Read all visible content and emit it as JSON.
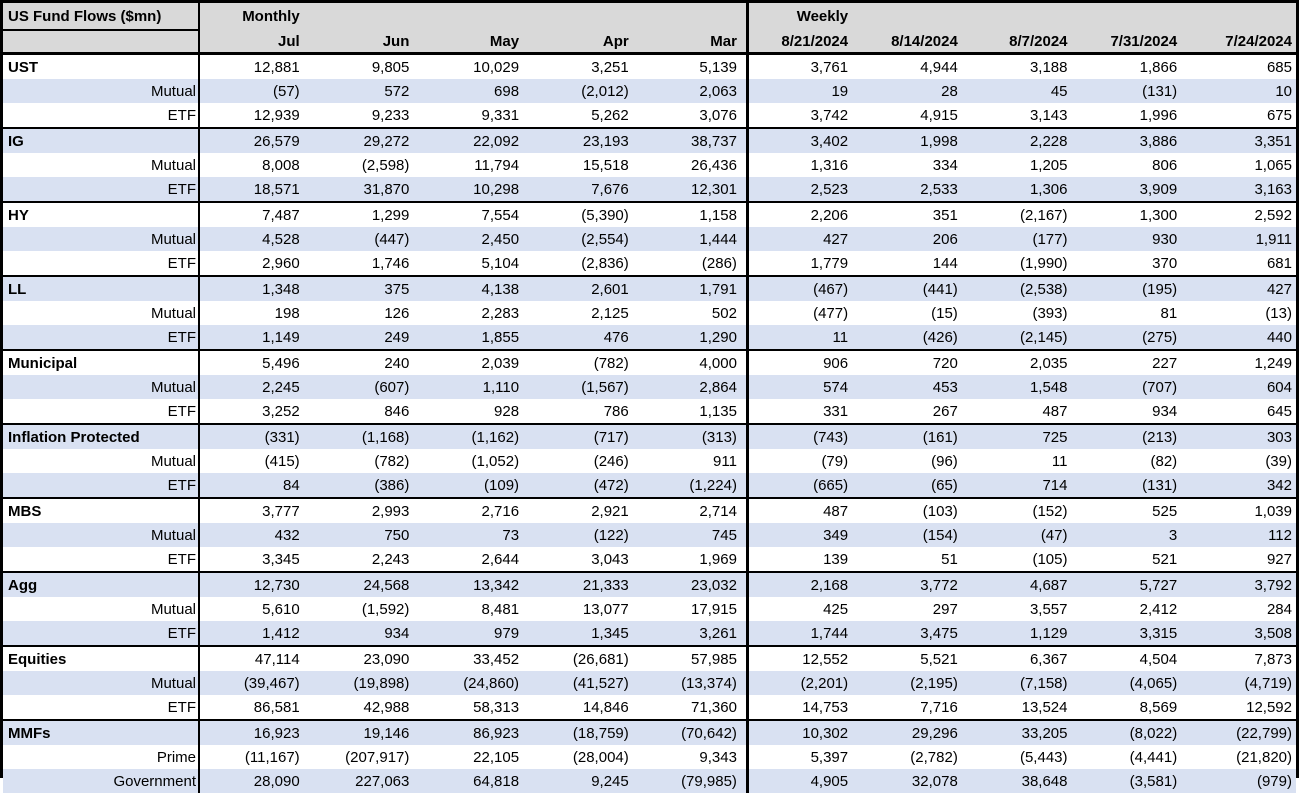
{
  "table": {
    "title": "US Fund Flows ($mn)",
    "monthly_label": "Monthly",
    "weekly_label": "Weekly",
    "monthly_columns": [
      "Jul",
      "Jun",
      "May",
      "Apr",
      "Mar"
    ],
    "weekly_columns": [
      "8/21/2024",
      "8/14/2024",
      "8/7/2024",
      "7/31/2024",
      "7/24/2024"
    ],
    "groups": [
      {
        "name": "UST",
        "rows": [
          {
            "label": "UST",
            "values": [
              "12,881",
              "9,805",
              "10,029",
              "3,251",
              "5,139",
              "3,761",
              "4,944",
              "3,188",
              "1,866",
              "685"
            ]
          },
          {
            "label": "Mutual",
            "values": [
              "(57)",
              "572",
              "698",
              "(2,012)",
              "2,063",
              "19",
              "28",
              "45",
              "(131)",
              "10"
            ]
          },
          {
            "label": "ETF",
            "values": [
              "12,939",
              "9,233",
              "9,331",
              "5,262",
              "3,076",
              "3,742",
              "4,915",
              "3,143",
              "1,996",
              "675"
            ]
          }
        ]
      },
      {
        "name": "IG",
        "rows": [
          {
            "label": "IG",
            "values": [
              "26,579",
              "29,272",
              "22,092",
              "23,193",
              "38,737",
              "3,402",
              "1,998",
              "2,228",
              "3,886",
              "3,351"
            ]
          },
          {
            "label": "Mutual",
            "values": [
              "8,008",
              "(2,598)",
              "11,794",
              "15,518",
              "26,436",
              "1,316",
              "334",
              "1,205",
              "806",
              "1,065"
            ]
          },
          {
            "label": "ETF",
            "values": [
              "18,571",
              "31,870",
              "10,298",
              "7,676",
              "12,301",
              "2,523",
              "2,533",
              "1,306",
              "3,909",
              "3,163"
            ]
          }
        ]
      },
      {
        "name": "HY",
        "rows": [
          {
            "label": "HY",
            "values": [
              "7,487",
              "1,299",
              "7,554",
              "(5,390)",
              "1,158",
              "2,206",
              "351",
              "(2,167)",
              "1,300",
              "2,592"
            ]
          },
          {
            "label": "Mutual",
            "values": [
              "4,528",
              "(447)",
              "2,450",
              "(2,554)",
              "1,444",
              "427",
              "206",
              "(177)",
              "930",
              "1,911"
            ]
          },
          {
            "label": "ETF",
            "values": [
              "2,960",
              "1,746",
              "5,104",
              "(2,836)",
              "(286)",
              "1,779",
              "144",
              "(1,990)",
              "370",
              "681"
            ]
          }
        ]
      },
      {
        "name": "LL",
        "rows": [
          {
            "label": "LL",
            "values": [
              "1,348",
              "375",
              "4,138",
              "2,601",
              "1,791",
              "(467)",
              "(441)",
              "(2,538)",
              "(195)",
              "427"
            ]
          },
          {
            "label": "Mutual",
            "values": [
              "198",
              "126",
              "2,283",
              "2,125",
              "502",
              "(477)",
              "(15)",
              "(393)",
              "81",
              "(13)"
            ]
          },
          {
            "label": "ETF",
            "values": [
              "1,149",
              "249",
              "1,855",
              "476",
              "1,290",
              "11",
              "(426)",
              "(2,145)",
              "(275)",
              "440"
            ]
          }
        ]
      },
      {
        "name": "Municipal",
        "rows": [
          {
            "label": "Municipal",
            "values": [
              "5,496",
              "240",
              "2,039",
              "(782)",
              "4,000",
              "906",
              "720",
              "2,035",
              "227",
              "1,249"
            ]
          },
          {
            "label": "Mutual",
            "values": [
              "2,245",
              "(607)",
              "1,110",
              "(1,567)",
              "2,864",
              "574",
              "453",
              "1,548",
              "(707)",
              "604"
            ]
          },
          {
            "label": "ETF",
            "values": [
              "3,252",
              "846",
              "928",
              "786",
              "1,135",
              "331",
              "267",
              "487",
              "934",
              "645"
            ]
          }
        ]
      },
      {
        "name": "Inflation Protected",
        "rows": [
          {
            "label": "Inflation Protected",
            "values": [
              "(331)",
              "(1,168)",
              "(1,162)",
              "(717)",
              "(313)",
              "(743)",
              "(161)",
              "725",
              "(213)",
              "303"
            ]
          },
          {
            "label": "Mutual",
            "values": [
              "(415)",
              "(782)",
              "(1,052)",
              "(246)",
              "911",
              "(79)",
              "(96)",
              "11",
              "(82)",
              "(39)"
            ]
          },
          {
            "label": "ETF",
            "values": [
              "84",
              "(386)",
              "(109)",
              "(472)",
              "(1,224)",
              "(665)",
              "(65)",
              "714",
              "(131)",
              "342"
            ]
          }
        ]
      },
      {
        "name": "MBS",
        "rows": [
          {
            "label": "MBS",
            "values": [
              "3,777",
              "2,993",
              "2,716",
              "2,921",
              "2,714",
              "487",
              "(103)",
              "(152)",
              "525",
              "1,039"
            ]
          },
          {
            "label": "Mutual",
            "values": [
              "432",
              "750",
              "73",
              "(122)",
              "745",
              "349",
              "(154)",
              "(47)",
              "3",
              "112"
            ]
          },
          {
            "label": "ETF",
            "values": [
              "3,345",
              "2,243",
              "2,644",
              "3,043",
              "1,969",
              "139",
              "51",
              "(105)",
              "521",
              "927"
            ]
          }
        ]
      },
      {
        "name": "Agg",
        "rows": [
          {
            "label": "Agg",
            "values": [
              "12,730",
              "24,568",
              "13,342",
              "21,333",
              "23,032",
              "2,168",
              "3,772",
              "4,687",
              "5,727",
              "3,792"
            ]
          },
          {
            "label": "Mutual",
            "values": [
              "5,610",
              "(1,592)",
              "8,481",
              "13,077",
              "17,915",
              "425",
              "297",
              "3,557",
              "2,412",
              "284"
            ]
          },
          {
            "label": "ETF",
            "values": [
              "1,412",
              "934",
              "979",
              "1,345",
              "3,261",
              "1,744",
              "3,475",
              "1,129",
              "3,315",
              "3,508"
            ]
          }
        ]
      },
      {
        "name": "Equities",
        "rows": [
          {
            "label": "Equities",
            "values": [
              "47,114",
              "23,090",
              "33,452",
              "(26,681)",
              "57,985",
              "12,552",
              "5,521",
              "6,367",
              "4,504",
              "7,873"
            ]
          },
          {
            "label": "Mutual",
            "values": [
              "(39,467)",
              "(19,898)",
              "(24,860)",
              "(41,527)",
              "(13,374)",
              "(2,201)",
              "(2,195)",
              "(7,158)",
              "(4,065)",
              "(4,719)"
            ]
          },
          {
            "label": "ETF",
            "values": [
              "86,581",
              "42,988",
              "58,313",
              "14,846",
              "71,360",
              "14,753",
              "7,716",
              "13,524",
              "8,569",
              "12,592"
            ]
          }
        ]
      },
      {
        "name": "MMFs",
        "rows": [
          {
            "label": "MMFs",
            "values": [
              "16,923",
              "19,146",
              "86,923",
              "(18,759)",
              "(70,642)",
              "10,302",
              "29,296",
              "33,205",
              "(8,022)",
              "(22,799)"
            ]
          },
          {
            "label": "Prime",
            "values": [
              "(11,167)",
              "(207,917)",
              "22,105",
              "(28,004)",
              "9,343",
              "5,397",
              "(2,782)",
              "(5,443)",
              "(4,441)",
              "(21,820)"
            ]
          },
          {
            "label": "Government",
            "values": [
              "28,090",
              "227,063",
              "64,818",
              "9,245",
              "(79,985)",
              "4,905",
              "32,078",
              "38,648",
              "(3,581)",
              "(979)"
            ]
          }
        ]
      }
    ]
  },
  "colors": {
    "header_bg": "#d9d9d9",
    "band": "#d9e1f2",
    "border": "#000000"
  }
}
